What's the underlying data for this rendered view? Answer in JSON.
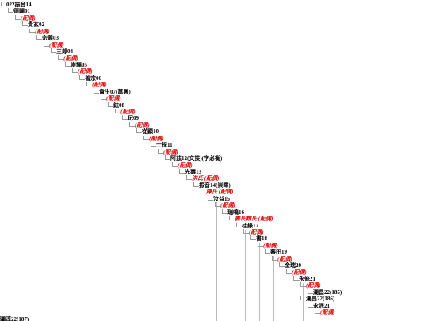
{
  "tree": {
    "rows": [
      {
        "name": "022振音14"
      },
      {
        "name": "德闢01"
      },
      {
        "spouse": "(配偶)"
      },
      {
        "name": "貴玄02"
      },
      {
        "spouse": "(配偶)"
      },
      {
        "name": "宗義03"
      },
      {
        "spouse": "(配偶)"
      },
      {
        "name": "三郎04"
      },
      {
        "spouse": "(配偶)"
      },
      {
        "name": "崇輝05"
      },
      {
        "spouse": "(配偶)"
      },
      {
        "name": "善宗06"
      },
      {
        "spouse": "(配偶)"
      },
      {
        "name": "貴生07(萬興)"
      },
      {
        "spouse": "(配偶)"
      },
      {
        "name": "鉉08"
      },
      {
        "spouse": "(配偶)"
      },
      {
        "name": "玘09"
      },
      {
        "spouse": "(配偶)"
      },
      {
        "name": "從顯10"
      },
      {
        "spouse": "(配偶)"
      },
      {
        "name": "士探11"
      },
      {
        "spouse": "(配偶)"
      },
      {
        "name": "阿茲12(文技)(字必衡)"
      },
      {
        "spouse": "(配偶)"
      },
      {
        "name": "光壽13"
      },
      {
        "spouse": "洪氏 (配偶)"
      },
      {
        "name": "振音14(崇暉)"
      },
      {
        "spouse": "陳氏 (配偶)"
      },
      {
        "name": "汝益15"
      },
      {
        "spouse": "(配偶)"
      },
      {
        "name": "瑞鳴16"
      },
      {
        "spouse": "姜氏魏氏 (配偶)"
      },
      {
        "name": "桂錄17"
      },
      {
        "spouse": "(配偶)"
      },
      {
        "name": "書18"
      },
      {
        "spouse": "(配偶)"
      },
      {
        "name": "蕃田19"
      },
      {
        "spouse": "(配偶)"
      },
      {
        "name": "金瑞20"
      },
      {
        "spouse": "(配偶)"
      },
      {
        "name": "永修21"
      },
      {
        "spouse": "(配偶)"
      },
      {
        "name": "瀾昌22(185)"
      },
      {
        "name": "瀾昌22(186)"
      },
      {
        "name": "永泯21"
      },
      {
        "spouse": "(配偶)"
      },
      {
        "name": "瀾淳22(187)"
      }
    ]
  }
}
